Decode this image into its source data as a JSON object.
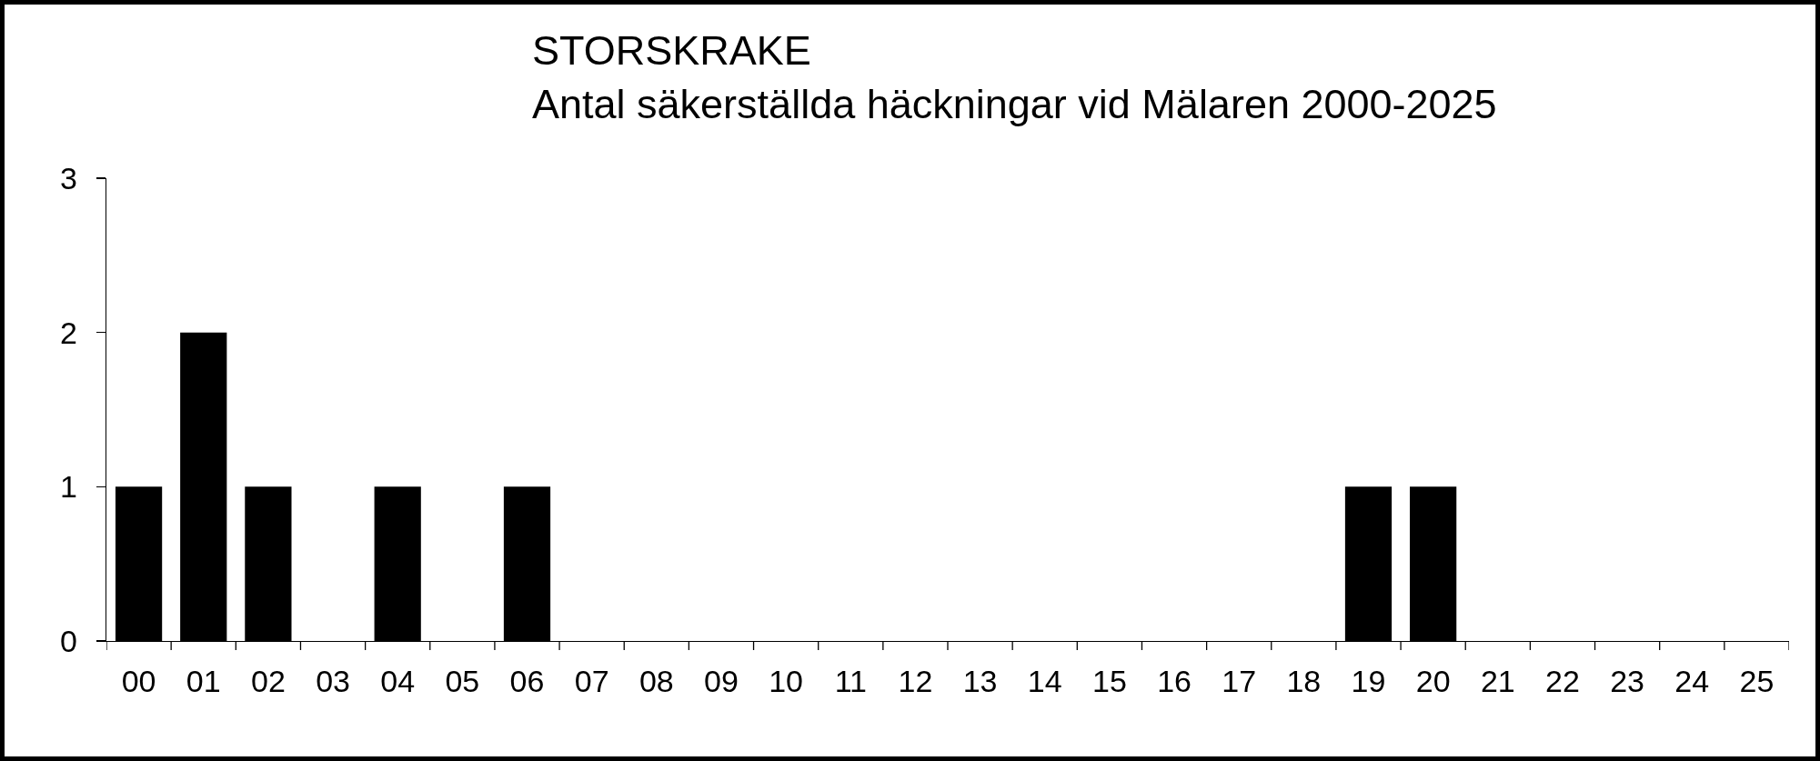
{
  "chart_data": {
    "type": "bar",
    "title": "STORSKRAKE",
    "subtitle": "Antal säkerställda häckningar vid Mälaren 2000-2025",
    "categories": [
      "00",
      "01",
      "02",
      "03",
      "04",
      "05",
      "06",
      "07",
      "08",
      "09",
      "10",
      "11",
      "12",
      "13",
      "14",
      "15",
      "16",
      "17",
      "18",
      "19",
      "20",
      "21",
      "22",
      "23",
      "24",
      "25"
    ],
    "values": [
      1,
      2,
      1,
      0,
      1,
      0,
      1,
      0,
      0,
      0,
      0,
      0,
      0,
      0,
      0,
      0,
      0,
      0,
      0,
      1,
      1,
      0,
      0,
      0,
      0,
      0
    ],
    "color": "#000000",
    "ylim": [
      0,
      3
    ],
    "yticks": [
      0,
      1,
      2,
      3
    ]
  }
}
